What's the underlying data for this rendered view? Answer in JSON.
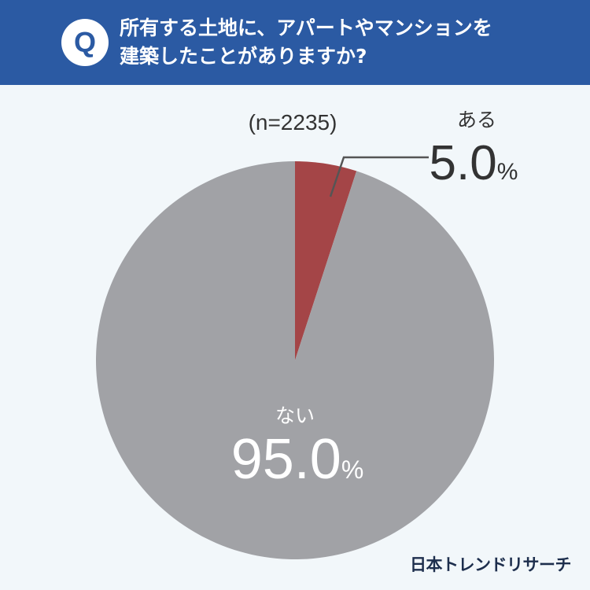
{
  "header": {
    "badge": "Q",
    "question_lines": [
      "所有する土地に、アパートやマンションを",
      "建築したことがありますか?"
    ]
  },
  "chart_data": {
    "type": "pie",
    "note": "(n=2235)",
    "slices": [
      {
        "label": "ある",
        "value": 5.0,
        "value_text": "5.0",
        "unit": "%",
        "color": "#a44547"
      },
      {
        "label": "ない",
        "value": 95.0,
        "value_text": "95.0",
        "unit": "%",
        "color": "#a1a2a6"
      }
    ],
    "start_angle_deg": 0,
    "direction": "clockwise"
  },
  "brand": {
    "logo_text": "日本トレンドリサーチ"
  }
}
